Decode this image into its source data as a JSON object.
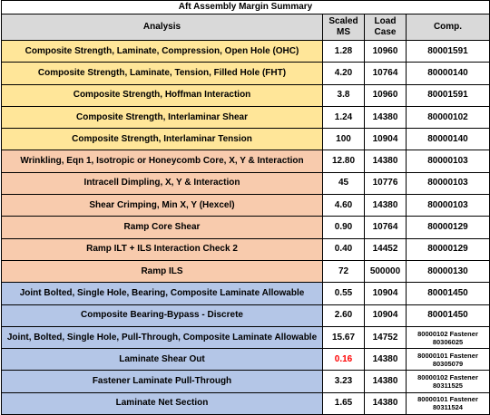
{
  "table": {
    "title": "Aft Assembly Margin Summary",
    "headers": [
      "Analysis",
      [
        "Scaled",
        "MS"
      ],
      [
        "Load",
        "Case"
      ],
      "Comp."
    ],
    "header_color": "#d9d9d9",
    "groups": [
      {
        "color": "#ffe699",
        "rows": [
          {
            "analysis": "Composite Strength, Laminate, Compression, Open Hole (OHC)",
            "ms": "1.28",
            "load_case": "10960",
            "comp": "80001591"
          },
          {
            "analysis": "Composite Strength, Laminate, Tension, Filled Hole (FHT)",
            "ms": "4.20",
            "load_case": "10764",
            "comp": "80000140"
          },
          {
            "analysis": "Composite Strength, Hoffman Interaction",
            "ms": "3.8",
            "load_case": "10960",
            "comp": "80001591"
          },
          {
            "analysis": "Composite Strength, Interlaminar Shear",
            "ms": "1.24",
            "load_case": "14380",
            "comp": "80000102"
          },
          {
            "analysis": "Composite Strength, Interlaminar Tension",
            "ms": "100",
            "load_case": "10904",
            "comp": "80000140"
          }
        ]
      },
      {
        "color": "#f8cbad",
        "rows": [
          {
            "analysis": "Wrinkling, Eqn 1, Isotropic or Honeycomb Core, X, Y & Interaction",
            "ms": "12.80",
            "load_case": "14380",
            "comp": "80000103"
          },
          {
            "analysis": "Intracell Dimpling, X, Y & Interaction",
            "ms": "45",
            "load_case": "10776",
            "comp": "80000103"
          },
          {
            "analysis": "Shear Crimping, Min X, Y (Hexcel)",
            "ms": "4.60",
            "load_case": "14380",
            "comp": "80000103"
          },
          {
            "analysis": "Ramp Core Shear",
            "ms": "0.90",
            "load_case": "10764",
            "comp": "80000129"
          },
          {
            "analysis": "Ramp ILT + ILS Interaction Check 2",
            "ms": "0.40",
            "load_case": "14452",
            "comp": "80000129"
          },
          {
            "analysis": "Ramp ILS",
            "ms": "72",
            "load_case": "500000",
            "comp": "80000130"
          }
        ]
      },
      {
        "color": "#b4c6e7",
        "rows": [
          {
            "analysis": "Joint Bolted, Single Hole, Bearing, Composite Laminate Allowable",
            "ms": "0.55",
            "load_case": "10904",
            "comp": "80001450"
          },
          {
            "analysis": "Composite Bearing-Bypass - Discrete",
            "ms": "2.60",
            "load_case": "10904",
            "comp": "80001450"
          },
          {
            "analysis": "Joint, Bolted, Single Hole, Pull-Through, Composite Laminate Allowable",
            "ms": "15.67",
            "load_case": "14752",
            "comp": [
              "80000102 Fastener",
              "80306025"
            ]
          },
          {
            "analysis": "Laminate Shear Out",
            "ms": "0.16",
            "ms_color": "#ff0000",
            "load_case": "14380",
            "comp": [
              "80000101 Fastener",
              "80305079"
            ]
          },
          {
            "analysis": "Fastener Laminate Pull-Through",
            "ms": "3.23",
            "load_case": "14380",
            "comp": [
              "80000102 Fastener",
              "80311525"
            ]
          },
          {
            "analysis": "Laminate Net Section",
            "ms": "1.65",
            "load_case": "14380",
            "comp": [
              "80000101 Fastener",
              "80311524"
            ]
          }
        ]
      }
    ]
  }
}
